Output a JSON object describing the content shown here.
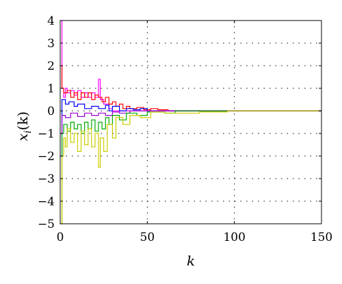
{
  "chart_data": {
    "type": "line",
    "step": true,
    "title": "",
    "xlabel": "k",
    "ylabel_main": "x",
    "ylabel_sub": "i",
    "ylabel_tail": "(k)",
    "xlim": [
      0,
      150
    ],
    "ylim": [
      -5,
      4
    ],
    "xticks": [
      0,
      50,
      100,
      150
    ],
    "yticks": [
      -5,
      -4,
      -3,
      -2,
      -1,
      0,
      1,
      2,
      3,
      4
    ],
    "grid": "dotted",
    "legend": "none",
    "series": [
      {
        "color": "#ff00ff",
        "points": [
          [
            0,
            4
          ],
          [
            1,
            4
          ],
          [
            1,
            1.0
          ],
          [
            2,
            1.0
          ],
          [
            2,
            0.6
          ],
          [
            3,
            0.6
          ],
          [
            3,
            1.0
          ],
          [
            4,
            1.0
          ],
          [
            4,
            0.8
          ],
          [
            6,
            0.8
          ],
          [
            6,
            0.9
          ],
          [
            8,
            0.9
          ],
          [
            8,
            0.7
          ],
          [
            10,
            0.7
          ],
          [
            10,
            0.9
          ],
          [
            12,
            0.9
          ],
          [
            12,
            0.6
          ],
          [
            14,
            0.6
          ],
          [
            14,
            0.8
          ],
          [
            16,
            0.8
          ],
          [
            16,
            0.6
          ],
          [
            18,
            0.6
          ],
          [
            18,
            0.8
          ],
          [
            20,
            0.8
          ],
          [
            20,
            0.6
          ],
          [
            22,
            0.6
          ],
          [
            22,
            1.4
          ],
          [
            23,
            1.4
          ],
          [
            23,
            0.5
          ],
          [
            25,
            0.5
          ],
          [
            25,
            0.3
          ],
          [
            28,
            0.3
          ],
          [
            28,
            0.1
          ],
          [
            30,
            0.1
          ],
          [
            30,
            0.0
          ],
          [
            150,
            0.0
          ]
        ]
      },
      {
        "color": "#ff0000",
        "points": [
          [
            0,
            2
          ],
          [
            1,
            2
          ],
          [
            1,
            1.0
          ],
          [
            2,
            1.0
          ],
          [
            2,
            0.8
          ],
          [
            4,
            0.8
          ],
          [
            4,
            0.9
          ],
          [
            6,
            0.9
          ],
          [
            6,
            0.6
          ],
          [
            8,
            0.6
          ],
          [
            8,
            0.8
          ],
          [
            10,
            0.8
          ],
          [
            10,
            0.5
          ],
          [
            12,
            0.5
          ],
          [
            12,
            0.8
          ],
          [
            14,
            0.8
          ],
          [
            14,
            0.6
          ],
          [
            16,
            0.6
          ],
          [
            16,
            0.8
          ],
          [
            18,
            0.8
          ],
          [
            18,
            0.5
          ],
          [
            20,
            0.5
          ],
          [
            20,
            0.7
          ],
          [
            22,
            0.7
          ],
          [
            22,
            0.6
          ],
          [
            24,
            0.6
          ],
          [
            24,
            0.4
          ],
          [
            26,
            0.4
          ],
          [
            26,
            0.6
          ],
          [
            28,
            0.6
          ],
          [
            28,
            0.3
          ],
          [
            30,
            0.3
          ],
          [
            30,
            0.4
          ],
          [
            32,
            0.4
          ],
          [
            32,
            0.2
          ],
          [
            34,
            0.2
          ],
          [
            34,
            0.3
          ],
          [
            36,
            0.3
          ],
          [
            36,
            0.1
          ],
          [
            38,
            0.1
          ],
          [
            38,
            0.2
          ],
          [
            40,
            0.2
          ],
          [
            40,
            0.1
          ],
          [
            44,
            0.1
          ],
          [
            44,
            0.15
          ],
          [
            48,
            0.15
          ],
          [
            48,
            0.05
          ],
          [
            52,
            0.05
          ],
          [
            52,
            0.1
          ],
          [
            56,
            0.1
          ],
          [
            56,
            0.05
          ],
          [
            62,
            0.05
          ],
          [
            62,
            0.0
          ],
          [
            150,
            0.0
          ]
        ]
      },
      {
        "color": "#0000ff",
        "points": [
          [
            0,
            -2
          ],
          [
            1,
            -2
          ],
          [
            1,
            0.5
          ],
          [
            3,
            0.5
          ],
          [
            3,
            0.3
          ],
          [
            5,
            0.3
          ],
          [
            5,
            0.4
          ],
          [
            8,
            0.4
          ],
          [
            8,
            0.2
          ],
          [
            10,
            0.2
          ],
          [
            10,
            0.3
          ],
          [
            14,
            0.3
          ],
          [
            14,
            0.1
          ],
          [
            18,
            0.1
          ],
          [
            18,
            0.2
          ],
          [
            22,
            0.2
          ],
          [
            22,
            0.1
          ],
          [
            26,
            0.1
          ],
          [
            26,
            0.25
          ],
          [
            28,
            0.25
          ],
          [
            28,
            0.0
          ],
          [
            30,
            0.0
          ],
          [
            30,
            0.2
          ],
          [
            34,
            0.2
          ],
          [
            34,
            0.0
          ],
          [
            38,
            0.0
          ],
          [
            38,
            0.1
          ],
          [
            42,
            0.1
          ],
          [
            42,
            0.05
          ],
          [
            46,
            0.05
          ],
          [
            46,
            0.1
          ],
          [
            50,
            0.1
          ],
          [
            50,
            0.0
          ],
          [
            150,
            0.0
          ]
        ]
      },
      {
        "color": "#9900cc",
        "points": [
          [
            0,
            -1
          ],
          [
            1,
            -1
          ],
          [
            1,
            -0.2
          ],
          [
            3,
            -0.2
          ],
          [
            3,
            -0.3
          ],
          [
            6,
            -0.3
          ],
          [
            6,
            -0.1
          ],
          [
            10,
            -0.1
          ],
          [
            10,
            -0.25
          ],
          [
            14,
            -0.25
          ],
          [
            14,
            -0.1
          ],
          [
            18,
            -0.1
          ],
          [
            18,
            -0.2
          ],
          [
            22,
            -0.2
          ],
          [
            22,
            -0.1
          ],
          [
            26,
            -0.1
          ],
          [
            26,
            -0.2
          ],
          [
            30,
            -0.2
          ],
          [
            30,
            -0.05
          ],
          [
            34,
            -0.05
          ],
          [
            34,
            -0.1
          ],
          [
            40,
            -0.1
          ],
          [
            40,
            0.0
          ],
          [
            150,
            0.0
          ]
        ]
      },
      {
        "color": "#00aa00",
        "points": [
          [
            0,
            -5
          ],
          [
            1,
            -5
          ],
          [
            1,
            -1.0
          ],
          [
            2,
            -1.0
          ],
          [
            2,
            -0.6
          ],
          [
            4,
            -0.6
          ],
          [
            4,
            -0.9
          ],
          [
            6,
            -0.9
          ],
          [
            6,
            -0.5
          ],
          [
            8,
            -0.5
          ],
          [
            8,
            -0.8
          ],
          [
            10,
            -0.8
          ],
          [
            10,
            -0.6
          ],
          [
            12,
            -0.6
          ],
          [
            12,
            -1.0
          ],
          [
            14,
            -1.0
          ],
          [
            14,
            -0.5
          ],
          [
            16,
            -0.5
          ],
          [
            16,
            -0.8
          ],
          [
            18,
            -0.8
          ],
          [
            18,
            -0.4
          ],
          [
            20,
            -0.4
          ],
          [
            20,
            -0.9
          ],
          [
            22,
            -0.9
          ],
          [
            22,
            -0.5
          ],
          [
            24,
            -0.5
          ],
          [
            24,
            -0.8
          ],
          [
            26,
            -0.8
          ],
          [
            26,
            -0.3
          ],
          [
            28,
            -0.3
          ],
          [
            28,
            -0.6
          ],
          [
            30,
            -0.6
          ],
          [
            30,
            -0.2
          ],
          [
            34,
            -0.2
          ],
          [
            34,
            -0.4
          ],
          [
            38,
            -0.4
          ],
          [
            38,
            -0.1
          ],
          [
            44,
            -0.1
          ],
          [
            44,
            -0.2
          ],
          [
            50,
            -0.2
          ],
          [
            50,
            -0.05
          ],
          [
            60,
            -0.05
          ],
          [
            60,
            -0.1
          ],
          [
            66,
            -0.1
          ],
          [
            66,
            0.0
          ],
          [
            150,
            0.0
          ]
        ]
      },
      {
        "color": "#cccc00",
        "points": [
          [
            0,
            -5
          ],
          [
            1,
            -5
          ],
          [
            1,
            -2.0
          ],
          [
            2,
            -2.0
          ],
          [
            2,
            -1.2
          ],
          [
            3,
            -1.2
          ],
          [
            3,
            -1.6
          ],
          [
            4,
            -1.6
          ],
          [
            4,
            -0.8
          ],
          [
            6,
            -0.8
          ],
          [
            6,
            -1.4
          ],
          [
            8,
            -1.4
          ],
          [
            8,
            -1.0
          ],
          [
            10,
            -1.0
          ],
          [
            10,
            -1.8
          ],
          [
            12,
            -1.8
          ],
          [
            12,
            -0.9
          ],
          [
            14,
            -0.9
          ],
          [
            14,
            -1.5
          ],
          [
            16,
            -1.5
          ],
          [
            16,
            -0.8
          ],
          [
            18,
            -0.8
          ],
          [
            18,
            -1.6
          ],
          [
            20,
            -1.6
          ],
          [
            20,
            -1.0
          ],
          [
            22,
            -1.0
          ],
          [
            22,
            -2.5
          ],
          [
            23,
            -2.5
          ],
          [
            23,
            -1.2
          ],
          [
            25,
            -1.2
          ],
          [
            25,
            -1.8
          ],
          [
            27,
            -1.8
          ],
          [
            27,
            -0.6
          ],
          [
            30,
            -0.6
          ],
          [
            30,
            -1.2
          ],
          [
            32,
            -1.2
          ],
          [
            32,
            -0.3
          ],
          [
            36,
            -0.3
          ],
          [
            36,
            -0.6
          ],
          [
            40,
            -0.6
          ],
          [
            40,
            -0.2
          ],
          [
            46,
            -0.2
          ],
          [
            46,
            -0.3
          ],
          [
            52,
            -0.3
          ],
          [
            52,
            -0.05
          ],
          [
            60,
            -0.05
          ],
          [
            60,
            -0.1
          ],
          [
            80,
            -0.1
          ],
          [
            80,
            -0.05
          ],
          [
            96,
            -0.05
          ],
          [
            96,
            0.0
          ],
          [
            150,
            0.0
          ]
        ]
      }
    ]
  }
}
